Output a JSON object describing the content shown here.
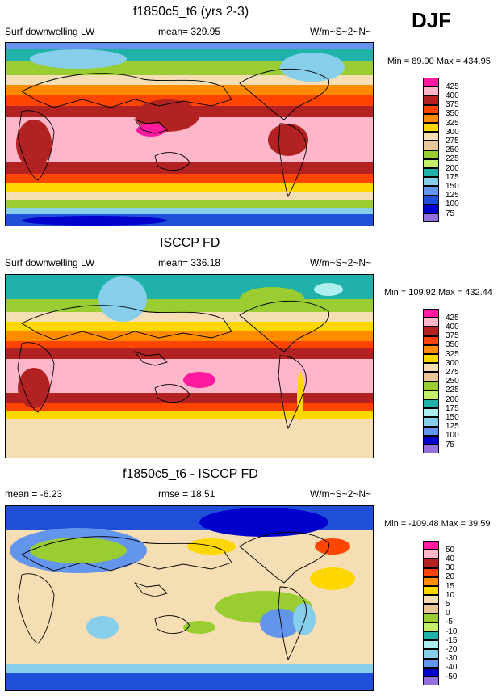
{
  "season": "DJF",
  "panels": [
    {
      "title": "f1850c5_t6 (yrs 2-3)",
      "left_label": "Surf downwelling LW",
      "center_label": "mean= 329.95",
      "units": "W/m~S~2~N~",
      "minmax": "Min = 89.90 Max = 434.95",
      "levels": [
        "425",
        "400",
        "375",
        "350",
        "325",
        "300",
        "275",
        "250",
        "225",
        "200",
        "175",
        "150",
        "125",
        "100",
        "75"
      ],
      "colors": [
        "#ff1aa0",
        "#ffb6c8",
        "#b22222",
        "#ff4500",
        "#ff8c00",
        "#ffd700",
        "#f5deb3",
        "#e8c89a",
        "#9acd32",
        "#c4ee6a",
        "#20b2aa",
        "#87ceeb",
        "#6495ed",
        "#1f4fd8",
        "#0000cd",
        "#9370db"
      ]
    },
    {
      "title": "ISCCP FD",
      "left_label": "Surf downwelling LW",
      "center_label": "mean= 336.18",
      "units": "W/m~S~2~N~",
      "minmax": "Min = 109.92 Max = 432.44",
      "levels": [
        "425",
        "400",
        "375",
        "350",
        "325",
        "300",
        "275",
        "250",
        "225",
        "200",
        "175",
        "150",
        "125",
        "100",
        "75"
      ],
      "colors": [
        "#ff1aa0",
        "#ffb6c8",
        "#b22222",
        "#ff4500",
        "#ff8c00",
        "#ffd700",
        "#f5deb3",
        "#e8c89a",
        "#9acd32",
        "#c4ee6a",
        "#20b2aa",
        "#aeeeee",
        "#87ceeb",
        "#6495ed",
        "#0000cd",
        "#9370db"
      ]
    },
    {
      "title": "f1850c5_t6 - ISCCP FD",
      "left_label": "mean = -6.23",
      "center_label": "rmse = 18.51",
      "units": "W/m~S~2~N~",
      "minmax": "Min = -109.48 Max = 39.59",
      "levels": [
        "50",
        "40",
        "30",
        "20",
        "15",
        "10",
        "5",
        "0",
        "-5",
        "-10",
        "-15",
        "-20",
        "-30",
        "-40",
        "-50"
      ],
      "colors": [
        "#ff1aa0",
        "#ffb6c8",
        "#b22222",
        "#ff4500",
        "#ff8c00",
        "#ffd700",
        "#f5deb3",
        "#e8c89a",
        "#9acd32",
        "#c4ee6a",
        "#20b2aa",
        "#aeeeee",
        "#87ceeb",
        "#6495ed",
        "#0000cd",
        "#9370db"
      ]
    }
  ]
}
